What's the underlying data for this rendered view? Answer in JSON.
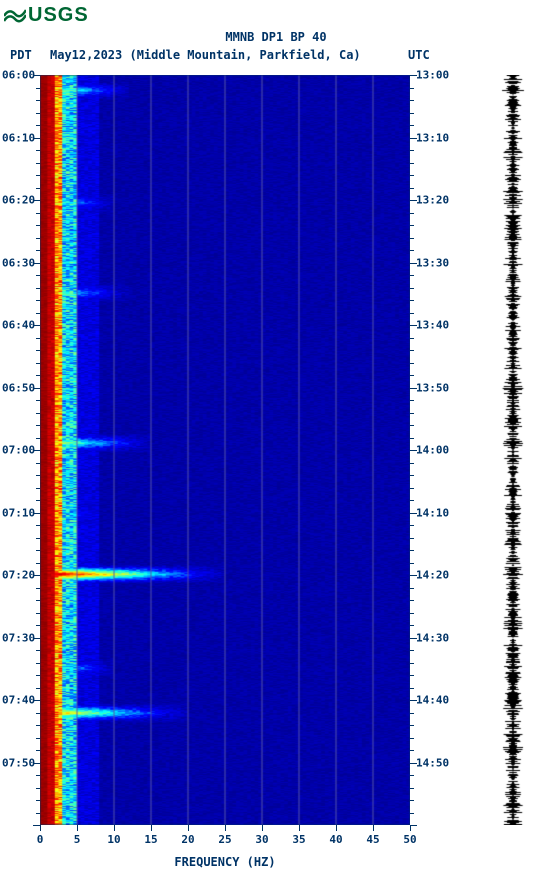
{
  "logo": {
    "text": "USGS",
    "color": "#006633"
  },
  "title": "MMNB DP1 BP 40",
  "subtitle": {
    "pdt": "PDT",
    "date": "May12,2023 (Middle Mountain, Parkfield, Ca)",
    "utc": "UTC"
  },
  "xlabel": "FREQUENCY (HZ)",
  "left_times": [
    "06:00",
    "06:10",
    "06:20",
    "06:30",
    "06:40",
    "06:50",
    "07:00",
    "07:10",
    "07:20",
    "07:30",
    "07:40",
    "07:50"
  ],
  "right_times": [
    "13:00",
    "13:10",
    "13:20",
    "13:30",
    "13:40",
    "13:50",
    "14:00",
    "14:10",
    "14:20",
    "14:30",
    "14:40",
    "14:50"
  ],
  "x_ticks": [
    "0",
    "5",
    "10",
    "15",
    "20",
    "25",
    "30",
    "35",
    "40",
    "45",
    "50"
  ],
  "spectrogram": {
    "type": "spectrogram",
    "xlim": [
      0,
      50
    ],
    "ylim_minutes": [
      0,
      120
    ],
    "frequency_bins": 50,
    "time_bins": 240,
    "colormap": {
      "low": "#00008b",
      "mid_low": "#0000ff",
      "mid": "#00ffff",
      "mid_high": "#ffff00",
      "high": "#ff0000",
      "max": "#8b0000"
    },
    "grid_color": "#5555aa",
    "grid_x_positions": [
      5,
      10,
      15,
      20,
      25,
      30,
      35,
      40,
      45
    ],
    "background_color": "#ffffff",
    "persistent_band": {
      "freq_start": 0,
      "freq_end": 4,
      "intensity": "high"
    },
    "events": [
      {
        "time_fraction": 0.02,
        "freq_extent": 12,
        "intensity": 0.6
      },
      {
        "time_fraction": 0.17,
        "freq_extent": 10,
        "intensity": 0.5
      },
      {
        "time_fraction": 0.29,
        "freq_extent": 12,
        "intensity": 0.5
      },
      {
        "time_fraction": 0.49,
        "freq_extent": 15,
        "intensity": 0.6
      },
      {
        "time_fraction": 0.585,
        "freq_extent": 8,
        "intensity": 0.4
      },
      {
        "time_fraction": 0.665,
        "freq_extent": 25,
        "intensity": 0.9
      },
      {
        "time_fraction": 0.79,
        "freq_extent": 10,
        "intensity": 0.5
      },
      {
        "time_fraction": 0.85,
        "freq_extent": 20,
        "intensity": 0.7
      }
    ]
  },
  "waveform": {
    "color": "#000000",
    "center_amplitude": 25,
    "noise_amplitude": 8,
    "events": [
      {
        "t": 0.665,
        "amp": 22
      },
      {
        "t": 0.585,
        "amp": 12
      },
      {
        "t": 0.85,
        "amp": 14
      },
      {
        "t": 0.49,
        "amp": 10
      }
    ]
  },
  "colors": {
    "axis_text": "#003366",
    "background": "#ffffff"
  },
  "font": {
    "family": "monospace",
    "title_size": 12,
    "tick_size": 11
  }
}
